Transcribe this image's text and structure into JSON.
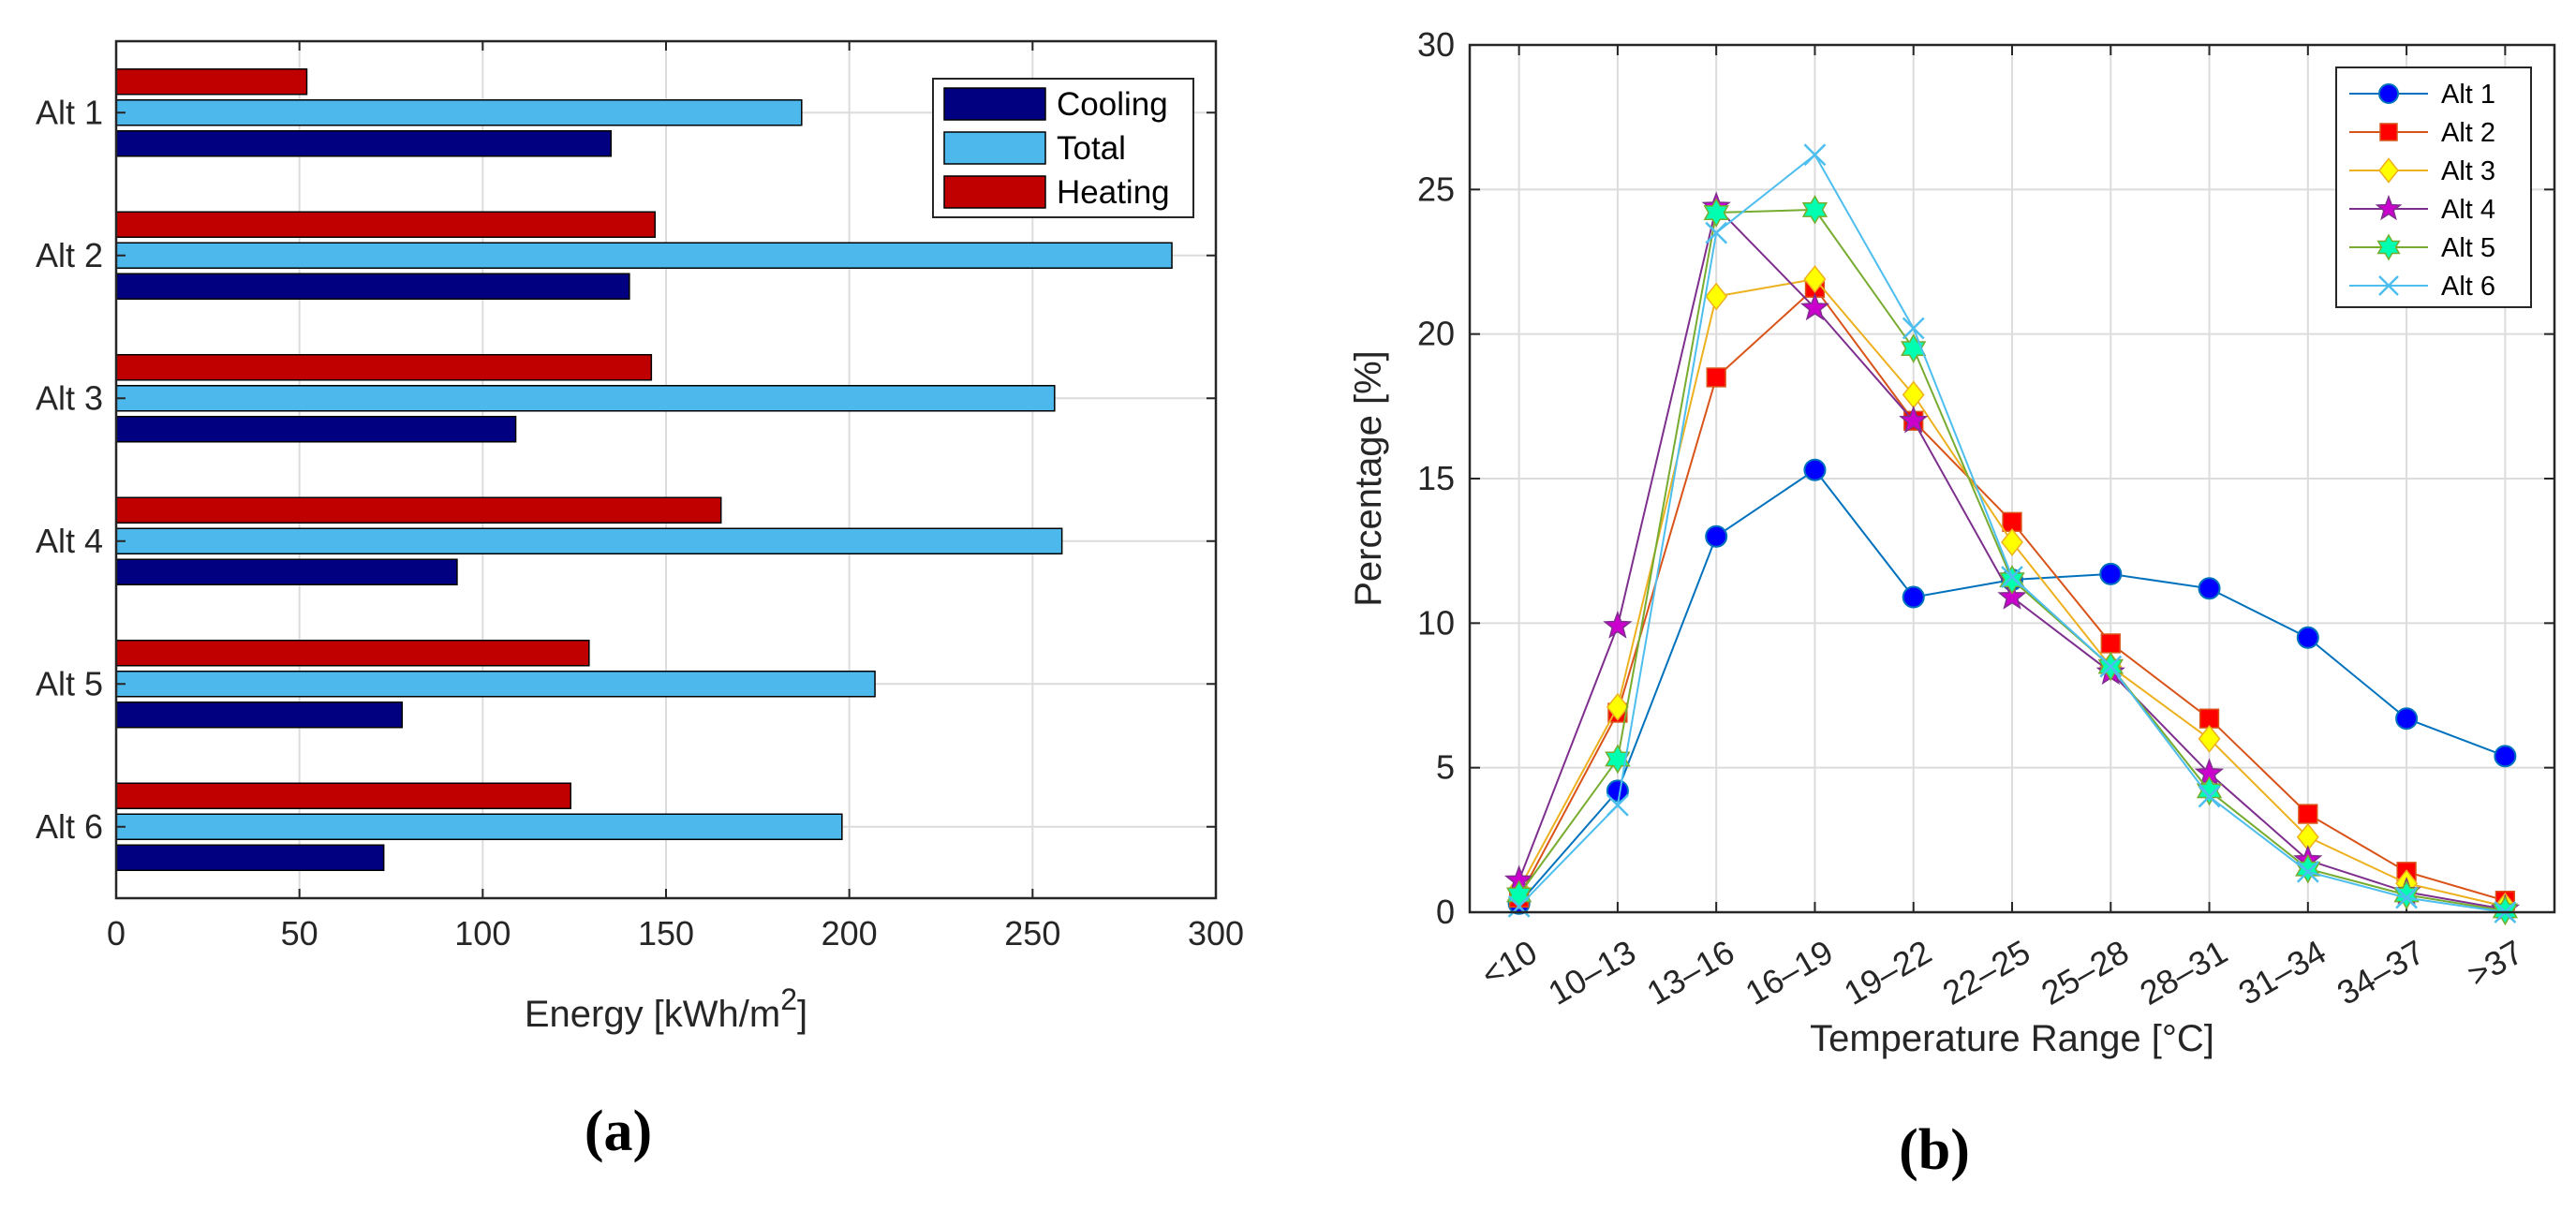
{
  "panel_a_label": "(a)",
  "panel_b_label": "(b)",
  "chart_data": [
    {
      "type": "bar",
      "orientation": "horizontal",
      "categories": [
        "Alt 1",
        "Alt 2",
        "Alt 3",
        "Alt 4",
        "Alt 5",
        "Alt 6"
      ],
      "series": [
        {
          "name": "Heating",
          "color": "#c00000",
          "values": [
            52,
            147,
            146,
            165,
            129,
            124
          ]
        },
        {
          "name": "Total",
          "color": "#4cb8ec",
          "values": [
            187,
            288,
            256,
            258,
            207,
            198
          ]
        },
        {
          "name": "Cooling",
          "color": "#000080",
          "values": [
            135,
            140,
            109,
            93,
            78,
            73
          ]
        }
      ],
      "legend_order": [
        "Cooling",
        "Total",
        "Heating"
      ],
      "xlabel": "Energy [kWh/m",
      "xlabel_sup": "2",
      "xlabel_end": "]",
      "xlim": [
        0,
        300
      ],
      "xticks": [
        "0",
        "50",
        "100",
        "150",
        "200",
        "250",
        "300"
      ],
      "grid": true,
      "legend_position": "top-right"
    },
    {
      "type": "line",
      "x": [
        "<10",
        "10–13",
        "13–16",
        "16–19",
        "19–22",
        "22–25",
        "25–28",
        "28–31",
        "31–34",
        "34–37",
        ">37"
      ],
      "series": [
        {
          "name": "Alt 1",
          "color": "#0072bd",
          "fill": "#0000ff",
          "marker": "circle",
          "values": [
            0.3,
            4.2,
            13.0,
            15.3,
            10.9,
            11.5,
            11.7,
            11.2,
            9.5,
            6.7,
            5.4
          ]
        },
        {
          "name": "Alt 2",
          "color": "#d95319",
          "fill": "#ff0000",
          "marker": "square",
          "values": [
            0.5,
            6.9,
            18.5,
            21.6,
            17.0,
            13.5,
            9.3,
            6.7,
            3.4,
            1.4,
            0.4
          ]
        },
        {
          "name": "Alt 3",
          "color": "#edb120",
          "fill": "#ffff00",
          "marker": "diamond",
          "values": [
            0.8,
            7.1,
            21.3,
            21.9,
            17.9,
            12.8,
            8.5,
            6.0,
            2.6,
            1.0,
            0.2
          ]
        },
        {
          "name": "Alt 4",
          "color": "#7e2f8e",
          "fill": "#cc00cc",
          "marker": "star",
          "values": [
            1.1,
            9.9,
            24.4,
            20.9,
            17.0,
            10.9,
            8.3,
            4.8,
            1.8,
            0.7,
            0.1
          ]
        },
        {
          "name": "Alt 5",
          "color": "#77ac30",
          "fill": "#00ffb0",
          "marker": "hexagram",
          "values": [
            0.6,
            5.3,
            24.2,
            24.3,
            19.5,
            11.5,
            8.5,
            4.2,
            1.5,
            0.6,
            0.05
          ]
        },
        {
          "name": "Alt 6",
          "color": "#4dbeee",
          "fill": "none",
          "marker": "x",
          "values": [
            0.2,
            3.7,
            23.5,
            26.2,
            20.2,
            11.6,
            8.5,
            4.0,
            1.4,
            0.5,
            0.0
          ]
        }
      ],
      "xlabel": "Temperature Range [°C]",
      "ylabel": "Percentage [%]",
      "ylim": [
        0,
        30
      ],
      "yticks": [
        "0",
        "5",
        "10",
        "15",
        "20",
        "25",
        "30"
      ],
      "grid": true,
      "legend_position": "top-right"
    }
  ]
}
